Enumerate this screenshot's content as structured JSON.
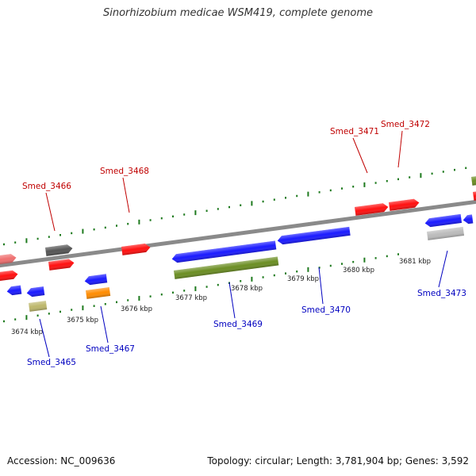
{
  "title": "Sinorhizobium medicae WSM419, complete genome",
  "footer": {
    "accession": "Accession: NC_009636",
    "summary": "Topology: circular; Length: 3,781,904 bp; Genes: 3,592"
  },
  "colors": {
    "backbone": "#8a8a8a",
    "tick": "#1e7a1e",
    "gene_label_forward": "#c00000",
    "gene_label_reverse": "#0000c0",
    "scale_label": "#222222"
  },
  "scale_labels": [
    "3674 kbp",
    "3675 kbp",
    "3676 kbp",
    "3677 kbp",
    "3678 kbp",
    "3679 kbp",
    "3680 kbp",
    "3681 kbp"
  ],
  "gene_labels": [
    {
      "name": "Smed_3465",
      "strand": "reverse"
    },
    {
      "name": "Smed_3466",
      "strand": "forward"
    },
    {
      "name": "Smed_3467",
      "strand": "reverse"
    },
    {
      "name": "Smed_3468",
      "strand": "forward"
    },
    {
      "name": "Smed_3469",
      "strand": "reverse"
    },
    {
      "name": "Smed_3470",
      "strand": "reverse"
    },
    {
      "name": "Smed_3471",
      "strand": "forward"
    },
    {
      "name": "Smed_3472",
      "strand": "forward"
    },
    {
      "name": "Smed_3473",
      "strand": "reverse"
    }
  ],
  "features": [
    {
      "type": "gene",
      "strand": "+",
      "color": "#ef6f6f"
    },
    {
      "type": "gene",
      "strand": "+",
      "color": "#ff1010"
    },
    {
      "type": "gene",
      "strand": "+",
      "color": "#555555"
    },
    {
      "type": "gene",
      "strand": "+",
      "color": "#ff1010"
    },
    {
      "type": "gene",
      "strand": "+",
      "color": "#ff1010"
    },
    {
      "type": "gene",
      "strand": "+",
      "color": "#ff1010"
    },
    {
      "type": "gene",
      "strand": "+",
      "color": "#ff1010"
    },
    {
      "type": "gene",
      "strand": "+",
      "color": "#ff1010"
    },
    {
      "type": "gene",
      "strand": "+",
      "color": "#6b8e23"
    },
    {
      "type": "gene",
      "strand": "-",
      "color": "#1a1aff"
    },
    {
      "type": "gene",
      "strand": "-",
      "color": "#1a1aff"
    },
    {
      "type": "gene",
      "strand": "-",
      "color": "#1a1aff"
    },
    {
      "type": "gene",
      "strand": "-",
      "color": "#1a1aff"
    },
    {
      "type": "gene",
      "strand": "-",
      "color": "#1a1aff"
    },
    {
      "type": "gene",
      "strand": "-",
      "color": "#1a1aff"
    },
    {
      "type": "gene",
      "strand": "-",
      "color": "#1a1aff"
    },
    {
      "type": "gene",
      "strand": "-",
      "color": "#bdb76b"
    },
    {
      "type": "gene",
      "strand": "-",
      "color": "#ff8c00"
    },
    {
      "type": "gene",
      "strand": "-",
      "color": "#6b8e23"
    },
    {
      "type": "gene",
      "strand": "-",
      "color": "#bbbbbb"
    }
  ]
}
